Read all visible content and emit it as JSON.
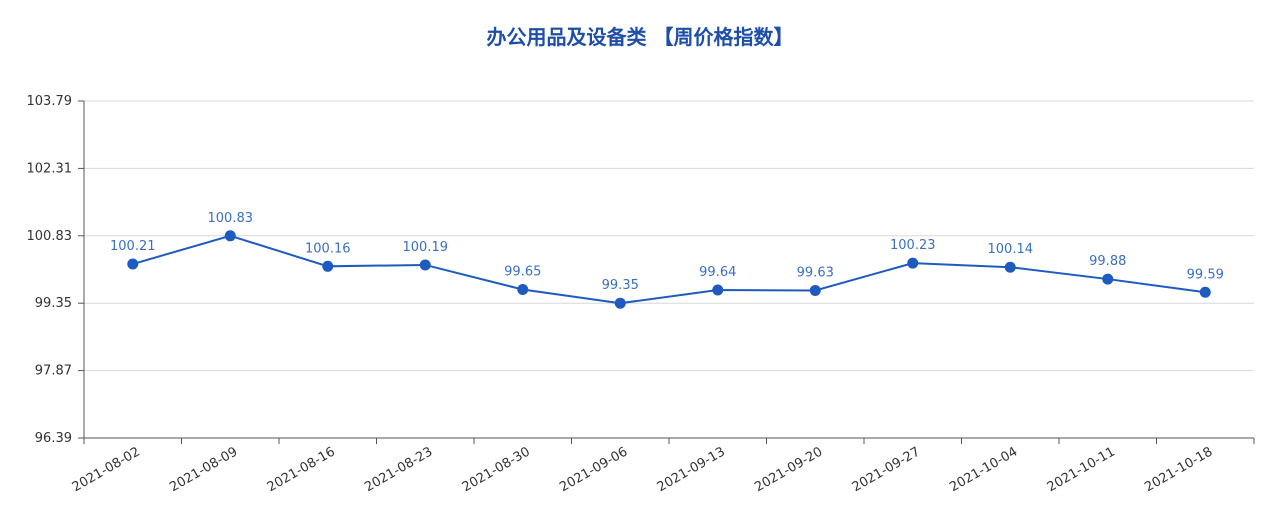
{
  "chart_data": {
    "type": "line",
    "title": "办公用品及设备类 【周价格指数】",
    "categories": [
      "2021-08-02",
      "2021-08-09",
      "2021-08-16",
      "2021-08-23",
      "2021-08-30",
      "2021-09-06",
      "2021-09-13",
      "2021-09-20",
      "2021-09-27",
      "2021-10-04",
      "2021-10-11",
      "2021-10-18"
    ],
    "series": [
      {
        "color": "#1f5bbf",
        "values": [
          100.21,
          100.83,
          100.16,
          100.19,
          99.65,
          99.35,
          99.64,
          99.63,
          100.23,
          100.14,
          99.88,
          99.59
        ]
      }
    ],
    "ylim": [
      96.39,
      103.79
    ],
    "yticks": [
      96.39,
      97.87,
      99.35,
      100.83,
      102.31,
      103.79
    ],
    "grid": true
  }
}
